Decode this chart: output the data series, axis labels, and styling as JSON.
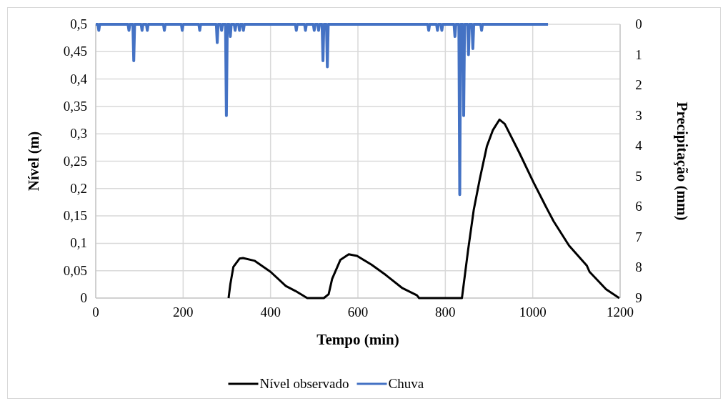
{
  "chart_data": {
    "type": "line",
    "xlabel": "Tempo (min)",
    "ylabel": "Nível (m)",
    "y2label": "Precipitação (mm)",
    "xlim": [
      0,
      1200
    ],
    "xticks": [
      0,
      200,
      400,
      600,
      800,
      1000,
      1200
    ],
    "ylim": [
      0,
      0.5
    ],
    "yticks": [
      0,
      {
        "value": 0.05,
        "label": "0,05"
      },
      {
        "value": 0.1,
        "label": "0,1"
      },
      {
        "value": 0.15,
        "label": "0,15"
      },
      {
        "value": 0.2,
        "label": "0,2"
      },
      {
        "value": 0.25,
        "label": "0,25"
      },
      {
        "value": 0.3,
        "label": "0,3"
      },
      {
        "value": 0.35,
        "label": "0,35"
      },
      {
        "value": 0.4,
        "label": "0,4"
      },
      {
        "value": 0.45,
        "label": "0,45"
      },
      {
        "value": 0.5,
        "label": "0,5"
      }
    ],
    "y2lim": [
      9,
      0
    ],
    "y2ticks": [
      0,
      1,
      2,
      3,
      4,
      5,
      6,
      7,
      8,
      9
    ],
    "grid": true,
    "legend": "bottom",
    "series": [
      {
        "name": "Nível observado",
        "color": "#000000",
        "x": [
          304,
          308,
          315,
          329,
          337,
          364,
          400,
          435,
          457,
          484,
          522,
          533,
          541,
          560,
          579,
          598,
          631,
          664,
          702,
          735,
          740,
          838,
          852,
          865,
          879,
          895,
          909,
          924,
          936,
          969,
          1002,
          1034,
          1048,
          1083,
          1124,
          1130,
          1168,
          1198
        ],
        "values": [
          0,
          0.025,
          0.057,
          0.072,
          0.073,
          0.068,
          0.048,
          0.022,
          0.013,
          0,
          0,
          0.007,
          0.035,
          0.07,
          0.08,
          0.077,
          0.061,
          0.042,
          0.018,
          0.005,
          0,
          0,
          0.087,
          0.161,
          0.218,
          0.277,
          0.307,
          0.326,
          0.318,
          0.266,
          0.211,
          0.161,
          0.14,
          0.096,
          0.059,
          0.048,
          0.016,
          0
        ]
      },
      {
        "name": "Chuva",
        "color": "#4472c4",
        "axis": "y2",
        "x": [
          0,
          5,
          7,
          9,
          74,
          76,
          78,
          85,
          87,
          89,
          104,
          106,
          108,
          116,
          118,
          120,
          155,
          157,
          159,
          196,
          198,
          200,
          236,
          238,
          240,
          276,
          278,
          280,
          286,
          288,
          290,
          297,
          299,
          301,
          306,
          308,
          310,
          317,
          319,
          321,
          327,
          329,
          331,
          336,
          338,
          340,
          457,
          459,
          461,
          478,
          480,
          482,
          498,
          500,
          502,
          508,
          510,
          512,
          518,
          520,
          522,
          528,
          530,
          532,
          760,
          762,
          764,
          780,
          782,
          784,
          790,
          792,
          794,
          820,
          822,
          824,
          831,
          833,
          835,
          840,
          842,
          844,
          851,
          853,
          855,
          861,
          863,
          865,
          881,
          883,
          885,
          1035
        ],
        "values": [
          0,
          0,
          0.2,
          0,
          0,
          0.2,
          0,
          0,
          1.2,
          0,
          0,
          0.2,
          0,
          0,
          0.2,
          0,
          0,
          0.2,
          0,
          0,
          0.2,
          0,
          0,
          0.2,
          0,
          0,
          0.6,
          0,
          0,
          0.2,
          0,
          0,
          3.0,
          0,
          0,
          0.4,
          0,
          0,
          0.2,
          0,
          0,
          0.2,
          0,
          0,
          0.2,
          0,
          0,
          0.2,
          0,
          0,
          0.2,
          0,
          0,
          0.2,
          0,
          0,
          0.2,
          0,
          0,
          1.2,
          0,
          0,
          1.4,
          0,
          0,
          0.2,
          0,
          0,
          0.2,
          0,
          0,
          0.2,
          0,
          0,
          0.4,
          0,
          0,
          5.6,
          0,
          0,
          3.0,
          0,
          0,
          1.0,
          0,
          0,
          0.8,
          0,
          0,
          0.2,
          0,
          0
        ]
      }
    ]
  }
}
